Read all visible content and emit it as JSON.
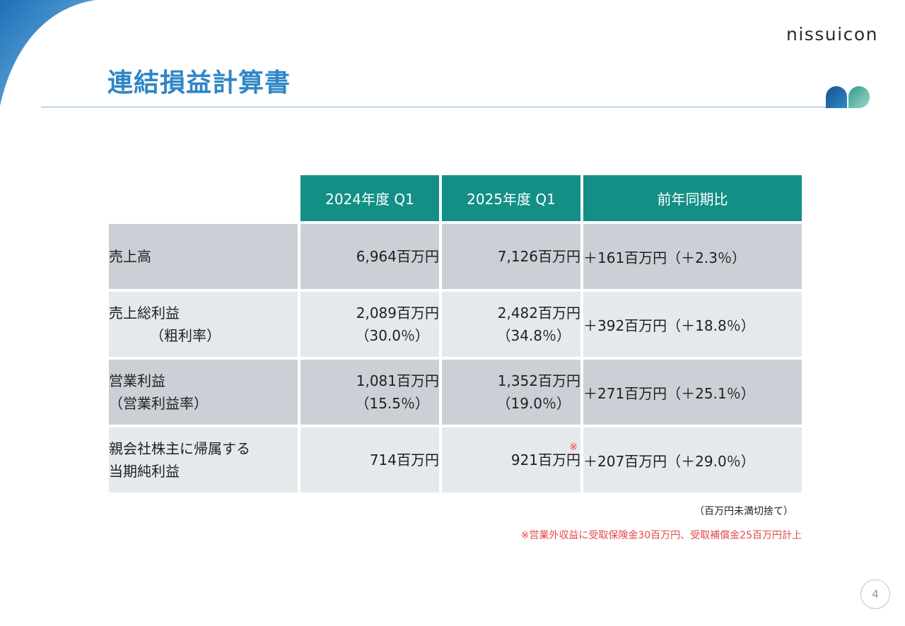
{
  "brand": {
    "logo_text": "nissuicon"
  },
  "title": "連結損益計算書",
  "table": {
    "headers": [
      "2024年度 Q1",
      "2025年度 Q1",
      "前年同期比"
    ],
    "rows": [
      {
        "label": "売上高",
        "label_sub": "",
        "fy2024": "6,964百万円",
        "fy2024_sub": "",
        "fy2025": "7,126百万円",
        "fy2025_sub": "",
        "yoy": "＋161百万円（＋2.3％）",
        "note_mark": ""
      },
      {
        "label": "売上総利益",
        "label_sub": "（粗利率）",
        "fy2024": "2,089百万円",
        "fy2024_sub": "（30.0％）",
        "fy2025": "2,482百万円",
        "fy2025_sub": "（34.8％）",
        "yoy": "＋392百万円（＋18.8％）",
        "note_mark": ""
      },
      {
        "label": "営業利益",
        "label_sub": "（営業利益率）",
        "fy2024": "1,081百万円",
        "fy2024_sub": "（15.5％）",
        "fy2025": "1,352百万円",
        "fy2025_sub": "（19.0％）",
        "yoy": "＋271百万円（＋25.1％）",
        "note_mark": ""
      },
      {
        "label": "親会社株主に帰属する",
        "label_sub": "当期純利益",
        "fy2024": "714百万円",
        "fy2024_sub": "",
        "fy2025": "921百万円",
        "fy2025_sub": "",
        "yoy": "＋207百万円（＋29.0％）",
        "note_mark": "※"
      }
    ]
  },
  "notes": {
    "rounding": "（百万円未満切捨て）",
    "footnote": "※営業外収益に受取保険金30百万円、受取補償金25百万円計上"
  },
  "page_number": "4",
  "colors": {
    "accent_teal": "#138f86",
    "title_blue": "#2f86c6",
    "note_red": "#e4464c"
  }
}
